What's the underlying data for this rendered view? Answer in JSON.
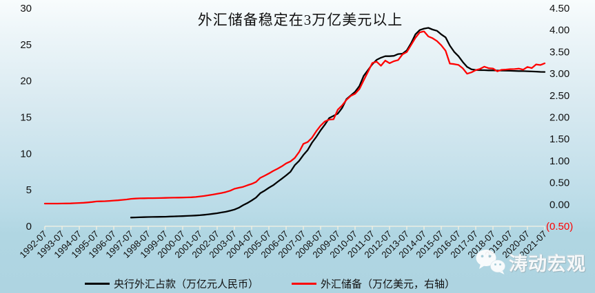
{
  "watermark": {
    "text": "涛动宏观",
    "icon": "wechat-icon"
  },
  "colors": {
    "background_top": "#f8fcfd",
    "background_bottom": "#aed4e1",
    "series_black": "#000000",
    "series_red": "#ff0000",
    "axis_line": "#f5f1e2",
    "axis_text": "#111111",
    "negative_tick": "#ff0000"
  },
  "chart_data": {
    "type": "line",
    "title": "外汇储备稳定在3万亿美元以上",
    "xlabel": "",
    "ylabel": "",
    "legend_position": "bottom",
    "grid": false,
    "x_tick_labels": [
      "1992-07",
      "1993-07",
      "1994-07",
      "1995-07",
      "1996-07",
      "1997-07",
      "1998-07",
      "1999-07",
      "2000-07",
      "2001-07",
      "2002-07",
      "2003-07",
      "2004-07",
      "2005-07",
      "2006-07",
      "2007-07",
      "2008-07",
      "2009-07",
      "2010-07",
      "2011-07",
      "2012-07",
      "2013-07",
      "2014-07",
      "2015-07",
      "2016-07",
      "2017-07",
      "2018-07",
      "2019-07",
      "2020-07",
      "2021-07"
    ],
    "left_axis": {
      "min": 0,
      "max": 30,
      "step": 5,
      "tick_labels": [
        "30",
        "25",
        "20",
        "15",
        "10",
        "5",
        "0"
      ]
    },
    "right_axis": {
      "min": -0.5,
      "max": 4.5,
      "step": 0.5,
      "tick_labels": [
        "4.50",
        "4.00",
        "3.50",
        "3.00",
        "2.50",
        "2.00",
        "1.50",
        "1.00",
        "0.50",
        "0.00",
        "(0.50)"
      ]
    },
    "series": [
      {
        "name": "央行外汇占款（万亿元人民币）",
        "color": "#000000",
        "axis": "left",
        "start_label": "1997-07",
        "start_year_offset": 5,
        "interval_years": 0.25,
        "values": [
          1.2,
          1.22,
          1.24,
          1.26,
          1.28,
          1.29,
          1.3,
          1.31,
          1.32,
          1.34,
          1.36,
          1.38,
          1.4,
          1.43,
          1.46,
          1.49,
          1.52,
          1.58,
          1.65,
          1.72,
          1.8,
          1.9,
          2.0,
          2.14,
          2.3,
          2.55,
          2.9,
          3.2,
          3.55,
          3.95,
          4.55,
          4.9,
          5.3,
          5.65,
          6.1,
          6.55,
          7.0,
          7.5,
          8.4,
          9.0,
          9.8,
          10.5,
          11.5,
          12.3,
          13.2,
          14.0,
          14.9,
          15.2,
          15.5,
          16.3,
          17.5,
          18.0,
          18.5,
          19.3,
          20.7,
          21.5,
          22.3,
          22.9,
          23.2,
          23.4,
          23.4,
          23.45,
          23.7,
          23.75,
          24.2,
          25.2,
          26.4,
          27.0,
          27.2,
          27.3,
          27.07,
          26.9,
          26.4,
          26.0,
          24.85,
          24.0,
          23.4,
          22.6,
          21.94,
          21.6,
          21.5,
          21.48,
          21.48,
          21.45,
          21.45,
          21.44,
          21.43,
          21.42,
          21.4,
          21.38,
          21.36,
          21.35,
          21.33,
          21.3,
          21.28,
          21.25,
          21.24
        ]
      },
      {
        "name": "外汇储备（万亿美元，右轴）",
        "color": "#ff0000",
        "axis": "right",
        "start_label": "1992-07",
        "start_year_offset": 0,
        "interval_years": 0.25,
        "values": [
          0.02,
          0.02,
          0.021,
          0.021,
          0.022,
          0.023,
          0.026,
          0.03,
          0.035,
          0.04,
          0.047,
          0.057,
          0.07,
          0.073,
          0.076,
          0.082,
          0.09,
          0.096,
          0.105,
          0.115,
          0.13,
          0.136,
          0.14,
          0.142,
          0.145,
          0.145,
          0.147,
          0.149,
          0.152,
          0.154,
          0.156,
          0.158,
          0.16,
          0.163,
          0.166,
          0.172,
          0.185,
          0.196,
          0.212,
          0.227,
          0.245,
          0.263,
          0.286,
          0.316,
          0.36,
          0.384,
          0.403,
          0.44,
          0.471,
          0.515,
          0.61,
          0.659,
          0.711,
          0.769,
          0.819,
          0.875,
          0.941,
          0.988,
          1.066,
          1.202,
          1.39,
          1.434,
          1.53,
          1.682,
          1.808,
          1.906,
          1.946,
          1.954,
          2.175,
          2.273,
          2.399,
          2.491,
          2.539,
          2.648,
          2.847,
          3.045,
          3.245,
          3.274,
          3.181,
          3.299,
          3.24,
          3.285,
          3.312,
          3.443,
          3.497,
          3.66,
          3.821,
          3.948,
          3.97,
          3.853,
          3.813,
          3.748,
          3.651,
          3.526,
          3.231,
          3.22,
          3.201,
          3.121,
          2.998,
          3.03,
          3.081,
          3.109,
          3.161,
          3.125,
          3.118,
          3.053,
          3.088,
          3.095,
          3.104,
          3.105,
          3.115,
          3.091,
          3.154,
          3.128,
          3.211,
          3.198,
          3.236
        ]
      }
    ]
  }
}
